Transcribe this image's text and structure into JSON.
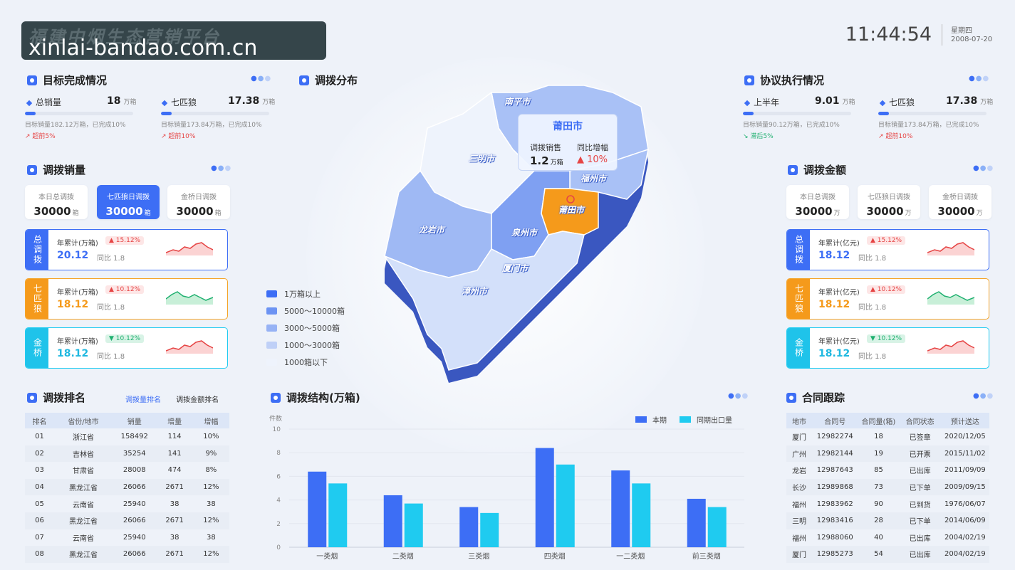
{
  "header": {
    "title": "福建中烟生态营销平台",
    "watermark": "xinlai-bandao.com.cn",
    "time": "11:44:54",
    "weekday": "星期四",
    "date": "2008-07-20"
  },
  "target": {
    "title": "目标完成情况",
    "items": [
      {
        "label": "总销量",
        "value": "18",
        "unit": "万箱",
        "progress": 0.1,
        "desc": "目标销量182.12万箱，已完成10%",
        "trend": "超前5%",
        "trend_dir": "up"
      },
      {
        "label": "七匹狼",
        "value": "17.38",
        "unit": "万箱",
        "progress": 0.1,
        "desc": "目标销量173.84万箱，已完成10%",
        "trend": "超前10%",
        "trend_dir": "up"
      }
    ]
  },
  "agreement": {
    "title": "协议执行情况",
    "items": [
      {
        "label": "上半年",
        "value": "9.01",
        "unit": "万箱",
        "progress": 0.1,
        "desc": "目标销量90.12万箱，已完成10%",
        "trend": "滞后5%",
        "trend_dir": "down"
      },
      {
        "label": "七匹狼",
        "value": "17.38",
        "unit": "万箱",
        "progress": 0.1,
        "desc": "目标销量173.84万箱，已完成10%",
        "trend": "超前10%",
        "trend_dir": "up"
      }
    ]
  },
  "volume": {
    "title": "调拨销量",
    "cards": [
      {
        "label": "本日总调拨",
        "value": "30000",
        "unit": "箱"
      },
      {
        "label": "七匹狼日调拨",
        "value": "30000",
        "unit": "箱"
      },
      {
        "label": "金桥日调拨",
        "value": "30000",
        "unit": "箱"
      }
    ],
    "stats": [
      {
        "side": "总调拨",
        "label": "年累计(万箱)",
        "badge": "▲ 15.12%",
        "value": "20.12",
        "yoy": "同比 1.8"
      },
      {
        "side": "七匹狼",
        "label": "年累计(万箱)",
        "badge": "▲ 10.12%",
        "value": "18.12",
        "yoy": "同比 1.8"
      },
      {
        "side": "金桥",
        "label": "年累计(万箱)",
        "badge": "▼ 10.12%",
        "value": "18.12",
        "yoy": "同比 1.8"
      }
    ]
  },
  "amount": {
    "title": "调拨金额",
    "cards": [
      {
        "label": "本日总调拨",
        "value": "30000",
        "unit": "万"
      },
      {
        "label": "七匹狼日调拨",
        "value": "30000",
        "unit": "万"
      },
      {
        "label": "金桥日调拨",
        "value": "30000",
        "unit": "万"
      }
    ],
    "stats": [
      {
        "side": "总调拨",
        "label": "年累计(亿元)",
        "badge": "▲ 15.12%",
        "value": "18.12",
        "yoy": "同比 1.8"
      },
      {
        "side": "七匹狼",
        "label": "年累计(亿元)",
        "badge": "▲ 10.12%",
        "value": "18.12",
        "yoy": "同比 1.8"
      },
      {
        "side": "金桥",
        "label": "年累计(亿元)",
        "badge": "▼ 10.12%",
        "value": "18.12",
        "yoy": "同比 1.8"
      }
    ]
  },
  "ranking": {
    "title": "调拨排名",
    "tab_active": "调拨量排名",
    "tab_other": "调拨金额排名",
    "columns": [
      "排名",
      "省份/地市",
      "销量",
      "增量",
      "增幅"
    ],
    "rows": [
      [
        "01",
        "浙江省",
        "158492",
        "114",
        "10%"
      ],
      [
        "02",
        "吉林省",
        "35254",
        "141",
        "9%"
      ],
      [
        "03",
        "甘肃省",
        "28008",
        "474",
        "8%"
      ],
      [
        "04",
        "黑龙江省",
        "26066",
        "2671",
        "12%"
      ],
      [
        "05",
        "云南省",
        "25940",
        "38",
        "38"
      ],
      [
        "06",
        "黑龙江省",
        "26066",
        "2671",
        "12%"
      ],
      [
        "07",
        "云南省",
        "25940",
        "38",
        "38"
      ],
      [
        "08",
        "黑龙江省",
        "26066",
        "2671",
        "12%"
      ]
    ]
  },
  "contract": {
    "title": "合同跟踪",
    "columns": [
      "地市",
      "合同号",
      "合同量(箱)",
      "合同状态",
      "预计送达"
    ],
    "rows": [
      [
        "厦门",
        "12982274",
        "18",
        "已签章",
        "2020/12/05"
      ],
      [
        "广州",
        "12982144",
        "19",
        "已开票",
        "2015/11/02"
      ],
      [
        "龙岩",
        "12987643",
        "85",
        "已出库",
        "2011/09/09"
      ],
      [
        "长沙",
        "12989868",
        "73",
        "已下单",
        "2009/09/15"
      ],
      [
        "福州",
        "12983962",
        "90",
        "已到货",
        "1976/06/07"
      ],
      [
        "三明",
        "12983416",
        "28",
        "已下单",
        "2014/06/09"
      ],
      [
        "福州",
        "12988060",
        "40",
        "已出库",
        "2004/02/19"
      ],
      [
        "厦门",
        "12985273",
        "54",
        "已出库",
        "2004/02/19"
      ]
    ]
  },
  "distribution": {
    "title": "调拨分布",
    "tooltip_city": "莆田市",
    "tooltip_sales_label": "调拨销售",
    "tooltip_growth_label": "同比增幅",
    "tooltip_sales_value": "1.2",
    "tooltip_sales_unit": "万箱",
    "tooltip_growth_value": "▲ 10%",
    "cities": [
      "南平市",
      "三明市",
      "福州市",
      "龙岩市",
      "泉州市",
      "莆田市",
      "厦门市",
      "漳州市"
    ],
    "legend": [
      {
        "label": "1万箱以上",
        "color": "#3d6ef5"
      },
      {
        "label": "5000～10000箱",
        "color": "#6c93f3"
      },
      {
        "label": "3000～5000箱",
        "color": "#96b2f5"
      },
      {
        "label": "1000～3000箱",
        "color": "#bfd0f7"
      },
      {
        "label": "1000箱以下",
        "color": "#eef3fc"
      }
    ]
  },
  "structure": {
    "title": "调拨结构(万箱)",
    "y_unit": "件数"
  },
  "chart_data": {
    "type": "bar",
    "categories": [
      "一类烟",
      "二类烟",
      "三类烟",
      "四类烟",
      "一二类烟",
      "前三类烟"
    ],
    "series": [
      {
        "name": "本期",
        "values": [
          6.4,
          4.4,
          3.4,
          8.4,
          6.5,
          4.1
        ],
        "color": "#3d6ef5"
      },
      {
        "name": "同期出口量",
        "values": [
          5.4,
          3.7,
          2.9,
          7.0,
          5.4,
          3.4
        ],
        "color": "#1fcbf0"
      }
    ],
    "ylim": [
      0,
      10
    ],
    "yticks": [
      "0",
      "2",
      "4",
      "6",
      "8",
      "10"
    ],
    "ylabel": "件数"
  }
}
